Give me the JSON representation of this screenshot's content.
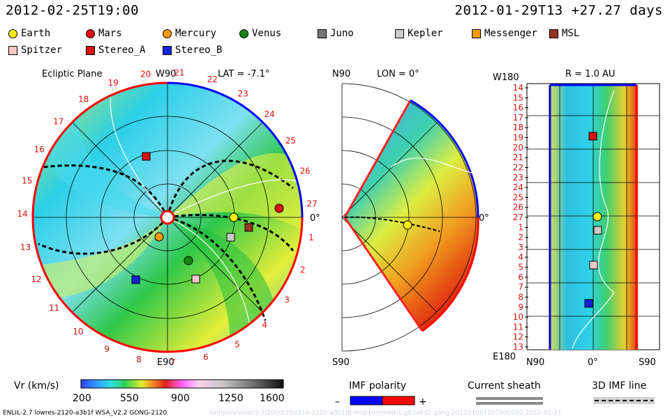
{
  "header": {
    "timestamp_left": "2012-02-25T19:00",
    "timestamp_right": "2012-01-29T13 +27.27 days"
  },
  "legend": {
    "items": [
      {
        "label": "Earth",
        "shape": "circle",
        "color": "#ffee00"
      },
      {
        "label": "Mars",
        "shape": "circle",
        "color": "#e01010"
      },
      {
        "label": "Mercury",
        "shape": "circle",
        "color": "#ff9900"
      },
      {
        "label": "Venus",
        "shape": "circle",
        "color": "#118811"
      },
      {
        "label": "Juno",
        "shape": "square",
        "color": "#777777"
      },
      {
        "label": "Kepler",
        "shape": "square",
        "color": "#cccccc"
      },
      {
        "label": "Messenger",
        "shape": "square",
        "color": "#ff9900"
      },
      {
        "label": "MSL",
        "shape": "square",
        "color": "#993322"
      },
      {
        "label": "Spitzer",
        "shape": "square",
        "color": "#ffc8c8"
      },
      {
        "label": "Stereo_A",
        "shape": "square",
        "color": "#dd1111"
      },
      {
        "label": "Stereo_B",
        "shape": "square",
        "color": "#1122dd"
      }
    ]
  },
  "panels": {
    "ecliptic": {
      "title": "Ecliptic Plane",
      "lat": "LAT = -7.1°",
      "top": "W90",
      "bottom": "E90",
      "right": "0°"
    },
    "meridional": {
      "top": "N90",
      "lon": "LON = 0°",
      "bottom": "S90",
      "right": "0°"
    },
    "radial": {
      "title": "R = 1.0 AU",
      "top_left": "W180",
      "bottom_left": "E180",
      "x_left": "N90",
      "x_mid": "0°",
      "x_right": "S90"
    }
  },
  "colorbar": {
    "label": "Vr (km/s)",
    "ticks": [
      "200",
      "550",
      "900",
      "1250",
      "1600"
    ]
  },
  "imf": {
    "label": "IMF polarity",
    "minus": "–",
    "plus": "+",
    "neg_color": "#0000ff",
    "pos_color": "#ff0000"
  },
  "current_sheath": {
    "label": "Current sheath"
  },
  "imf_line": {
    "label": "3D IMF line"
  },
  "footer": {
    "left": "ENLIL-2.7 lowres-2120-a3b1f WSA_V2.2 GONG-2120",
    "faint": "samples/wsatr2.7/2000/20d91d-2120-a3b1f8-mcp1ummed-1.g83a6d2.gang 20120108T2259d0000  2012-02-21"
  },
  "chart_data": [
    {
      "type": "heatmap",
      "title": "Ecliptic Plane",
      "subtitle": "LAT = -7.1°",
      "quantity": "Vr (km/s)",
      "range": [
        200,
        1600
      ],
      "carrington_rotation_ticks": [
        "1",
        "2",
        "3",
        "4",
        "5",
        "6",
        "7",
        "8",
        "9",
        "10",
        "11",
        "12",
        "13",
        "14",
        "15",
        "16",
        "17",
        "18",
        "19",
        "20",
        "21",
        "22",
        "23",
        "24",
        "25",
        "26",
        "27"
      ],
      "bodies": [
        "Mars",
        "Stereo_A",
        "Earth",
        "MSL",
        "Kepler",
        "Mercury",
        "Venus",
        "Stereo_B",
        "Spitzer"
      ]
    },
    {
      "type": "heatmap",
      "title": "Meridional Plane",
      "subtitle": "LON = 0°",
      "quantity": "Vr (km/s)",
      "bodies": [
        "Earth"
      ]
    },
    {
      "type": "heatmap",
      "title": "R = 1.0 AU",
      "quantity": "Vr (km/s)",
      "y_ticks": [
        "14",
        "15",
        "16",
        "17",
        "18",
        "19",
        "20",
        "21",
        "22",
        "23",
        "24",
        "25",
        "26",
        "27",
        "1",
        "2",
        "3",
        "4",
        "5",
        "6",
        "7",
        "8",
        "9",
        "10",
        "11",
        "12",
        "13"
      ],
      "x_ticks": [
        "N90",
        "0°",
        "S90"
      ],
      "y_ends": [
        "W180",
        "E180"
      ],
      "bodies": [
        "Stereo_A",
        "Earth",
        "Kepler",
        "Spitzer",
        "Stereo_B"
      ]
    }
  ]
}
